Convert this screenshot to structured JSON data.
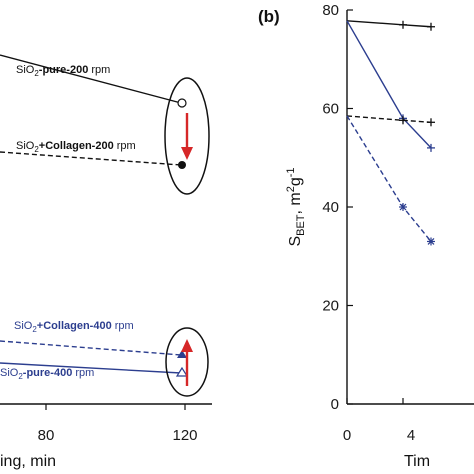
{
  "chart_data": [
    {
      "panel": "a",
      "type": "line",
      "xlabel_visible": "ing, min",
      "x_ticks": [
        "80",
        "120"
      ],
      "series": [
        {
          "name": "SiO2-pure-200 rpm",
          "color": "#111111",
          "dash": false,
          "marker": "open-circle",
          "points": [
            [
              0,
              0.845
            ],
            [
              120,
              0.782
            ]
          ]
        },
        {
          "name": "SiO2+Collagen-200 rpm",
          "color": "#111111",
          "dash": true,
          "marker": "filled-circle",
          "points": [
            [
              0,
              0.7
            ],
            [
              120,
              0.65
            ]
          ]
        },
        {
          "name": "SiO2+Collagen-400 rpm",
          "color": "#2c3e8f",
          "dash": true,
          "marker": "filled-triangle",
          "points": [
            [
              0,
              0.268
            ],
            [
              120,
              0.25
            ]
          ]
        },
        {
          "name": "SiO2-pure-400 rpm",
          "color": "#2c3e8f",
          "dash": false,
          "marker": "open-triangle",
          "points": [
            [
              0,
              0.23
            ],
            [
              120,
              0.213
            ]
          ]
        }
      ],
      "annotations": [
        {
          "prefix": "SiO",
          "sub": "2",
          "bold": "-pure-200",
          "suffix": " rpm",
          "color": "black"
        },
        {
          "prefix": "SiO",
          "sub": "2",
          "bold": "+Collagen-200",
          "suffix": " rpm",
          "color": "black"
        },
        {
          "prefix": "SiO",
          "sub": "2",
          "bold": "+Collagen-400",
          "suffix": " rpm",
          "color": "blue"
        },
        {
          "prefix": "SiO",
          "sub": "2",
          "bold": "-pure-400",
          "suffix": " rpm",
          "color": "blue"
        }
      ],
      "arrows": [
        {
          "direction": "down",
          "color": "#d62728"
        },
        {
          "direction": "up",
          "color": "#d62728"
        }
      ]
    },
    {
      "panel": "b",
      "panel_label": "(b)",
      "type": "line",
      "ylabel": {
        "main": "S",
        "sub": "BET",
        "units_a": ", m",
        "sup_a": "2",
        "units_b": "g",
        "sup_b": "-1"
      },
      "xlabel_visible": "Tim",
      "ylim": [
        0,
        80
      ],
      "y_ticks": [
        "0",
        "20",
        "40",
        "60",
        "80"
      ],
      "x_ticks": [
        "0",
        "4"
      ],
      "x_range": [
        0,
        60
      ],
      "series": [
        {
          "name": "",
          "color": "#111111",
          "dash": false,
          "marker": "plus",
          "points": [
            [
              0,
              77.8
            ],
            [
              40,
              77.0
            ],
            [
              60,
              76.6
            ]
          ]
        },
        {
          "name": "",
          "color": "#2c3e8f",
          "dash": false,
          "marker": "plus",
          "points": [
            [
              0,
              77.8
            ],
            [
              40,
              58.0
            ],
            [
              60,
              52.0
            ]
          ]
        },
        {
          "name": "",
          "color": "#111111",
          "dash": true,
          "marker": "plus",
          "points": [
            [
              0,
              58.5
            ],
            [
              40,
              57.6
            ],
            [
              60,
              57.2
            ]
          ]
        },
        {
          "name": "",
          "color": "#2c3e8f",
          "dash": true,
          "marker": "star",
          "points": [
            [
              0,
              58.5
            ],
            [
              40,
              40.0
            ],
            [
              60,
              33.0
            ]
          ]
        }
      ]
    }
  ]
}
